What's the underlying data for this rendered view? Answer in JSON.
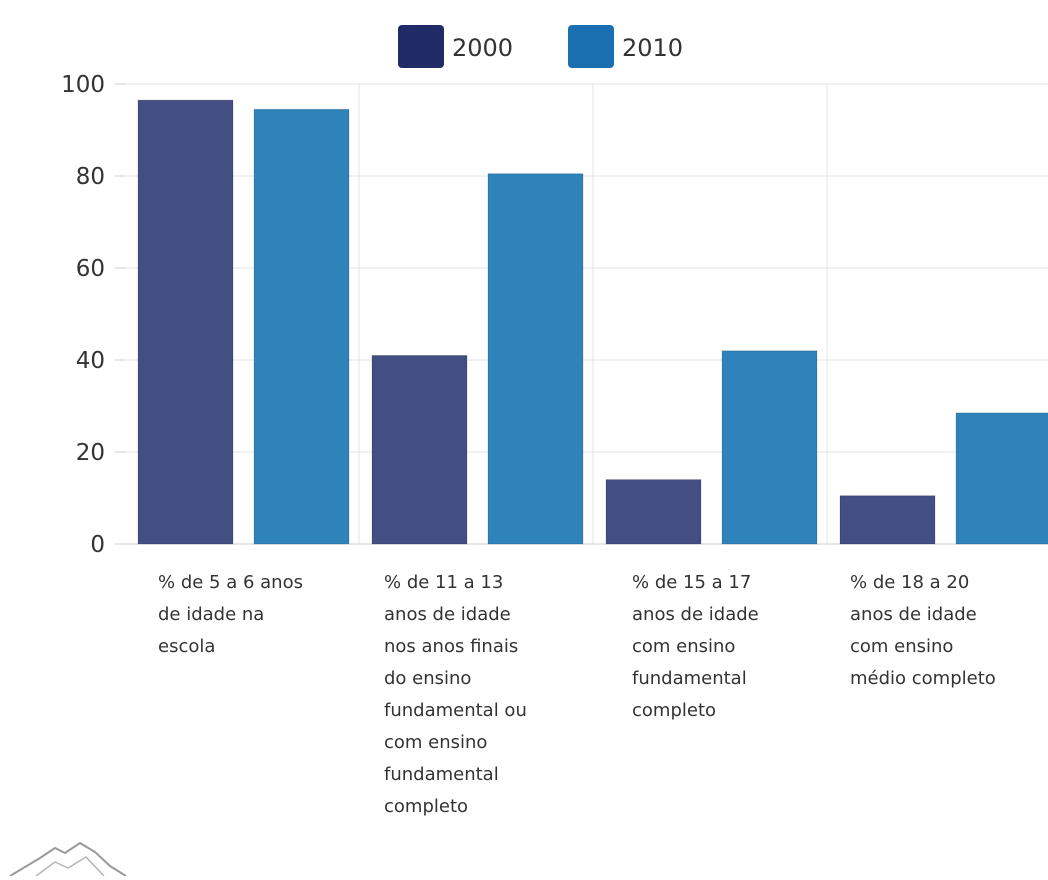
{
  "chart_data": {
    "type": "bar",
    "categories": [
      [
        "% de 5 a 6 anos",
        "de idade na",
        "escola"
      ],
      [
        "% de 11 a 13",
        "anos de idade",
        "nos anos finais",
        "do ensino",
        "fundamental ou",
        "com ensino",
        "fundamental",
        "completo"
      ],
      [
        "% de 15 a 17",
        "anos de idade",
        "com ensino",
        "fundamental",
        "completo"
      ],
      [
        "% de 18 a 20",
        "anos de idade",
        "com ensino",
        "médio completo"
      ]
    ],
    "series": [
      {
        "name": "2000",
        "color": "#434e82",
        "values": [
          96.5,
          41,
          14,
          10.5
        ]
      },
      {
        "name": "2010",
        "color": "#2f83bb",
        "values": [
          94.5,
          80.5,
          42,
          28.5
        ]
      }
    ],
    "ylim": [
      0,
      100
    ],
    "yticks": [
      0,
      20,
      40,
      60,
      80,
      100
    ],
    "grid": true,
    "legend_position": "top-center",
    "legend_swatch_colors": [
      "#1f2a66",
      "#1a6fb0"
    ],
    "title": "",
    "xlabel": "",
    "ylabel": ""
  },
  "footer_logo": {
    "icon": "mountain-logo-icon"
  }
}
